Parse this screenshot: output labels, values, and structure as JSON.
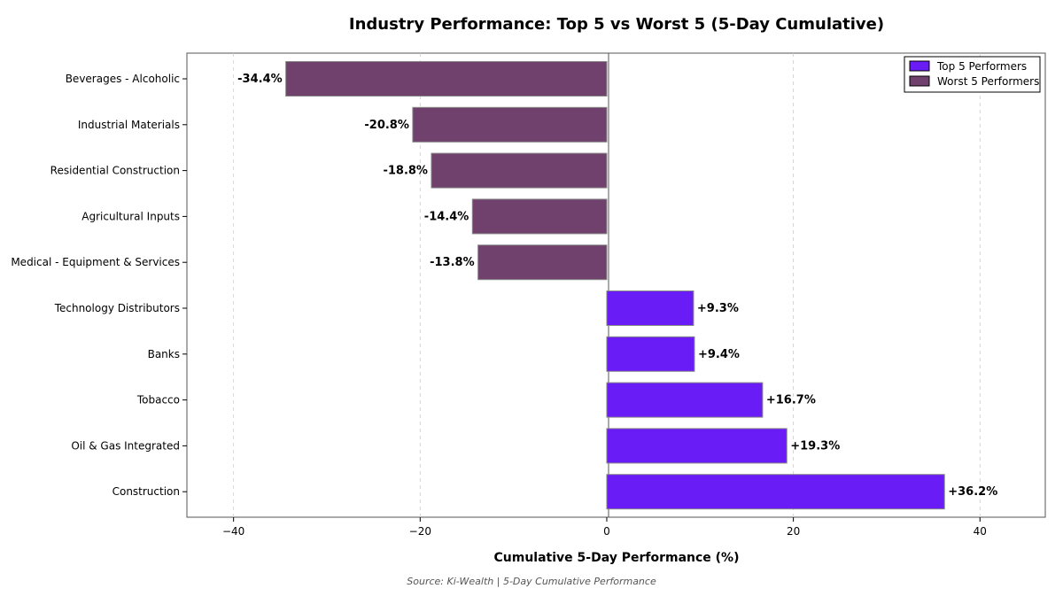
{
  "chart_data": {
    "type": "bar",
    "orientation": "horizontal",
    "title": "Industry Performance: Top 5 vs Worst 5 (5-Day Cumulative)",
    "xlabel": "Cumulative 5-Day Performance (%)",
    "ylabel": "",
    "xlim": [
      -45,
      47
    ],
    "xticks": [
      -40,
      -20,
      0,
      20,
      40
    ],
    "xtick_labels": [
      "−40",
      "−20",
      "0",
      "20",
      "40"
    ],
    "grid": "vertical dashed",
    "legend_position": "top-right",
    "categories": [
      "Beverages - Alcoholic",
      "Industrial Materials",
      "Residential Construction",
      "Agricultural Inputs",
      "Medical - Equipment & Services",
      "Technology Distributors",
      "Banks",
      "Tobacco",
      "Oil & Gas Integrated",
      "Construction"
    ],
    "values": [
      -34.4,
      -20.8,
      -18.8,
      -14.4,
      -13.8,
      9.3,
      9.4,
      16.7,
      19.3,
      36.2
    ],
    "value_labels": [
      "-34.4%",
      "-20.8%",
      "-18.8%",
      "-14.4%",
      "-13.8%",
      "+9.3%",
      "+9.4%",
      "+16.7%",
      "+19.3%",
      "+36.2%"
    ],
    "series": [
      {
        "name": "Top 5 Performers",
        "color": "#6a1cf6"
      },
      {
        "name": "Worst 5 Performers",
        "color": "#70416d"
      }
    ],
    "source": "Source: Ki-Wealth | 5-Day Cumulative Performance"
  }
}
